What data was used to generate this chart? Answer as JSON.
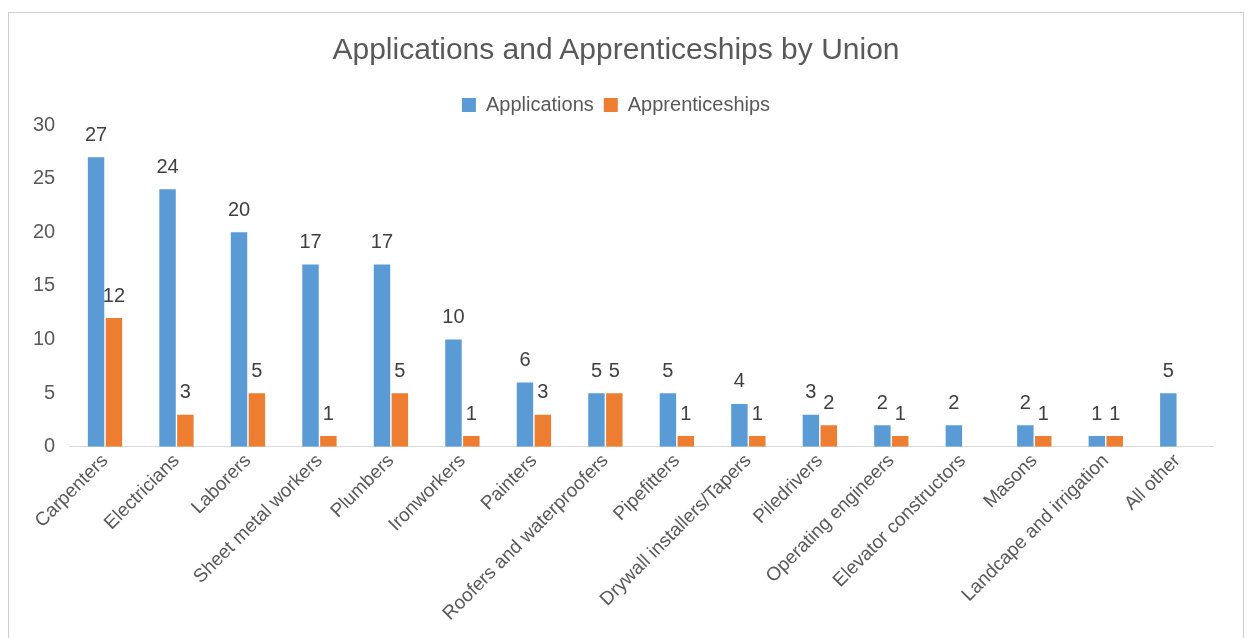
{
  "chart_data": {
    "type": "bar",
    "title": "Applications and Apprenticeships by Union",
    "categories": [
      "Carpenters",
      "Electricians",
      "Laborers",
      "Sheet metal workers",
      "Plumbers",
      "Ironworkers",
      "Painters",
      "Roofers and waterproofers",
      "Pipefitters",
      "Drywall installers/Tapers",
      "Piledrivers",
      "Operating engineers",
      "Elevator constructors",
      "Masons",
      "Landcape and irrigation",
      "All other"
    ],
    "series": [
      {
        "name": "Applications",
        "color": "#5b9bd5",
        "values": [
          27,
          24,
          20,
          17,
          17,
          10,
          6,
          5,
          5,
          4,
          3,
          2,
          2,
          2,
          1,
          5
        ]
      },
      {
        "name": "Apprenticeships",
        "color": "#ed7d31",
        "values": [
          12,
          3,
          5,
          1,
          5,
          1,
          3,
          5,
          1,
          1,
          2,
          1,
          null,
          1,
          1,
          null
        ]
      }
    ],
    "ylim": [
      0,
      30
    ],
    "yticks": [
      0,
      5,
      10,
      15,
      20,
      25,
      30
    ],
    "grid": false,
    "legend": "top",
    "data_labels": true
  }
}
